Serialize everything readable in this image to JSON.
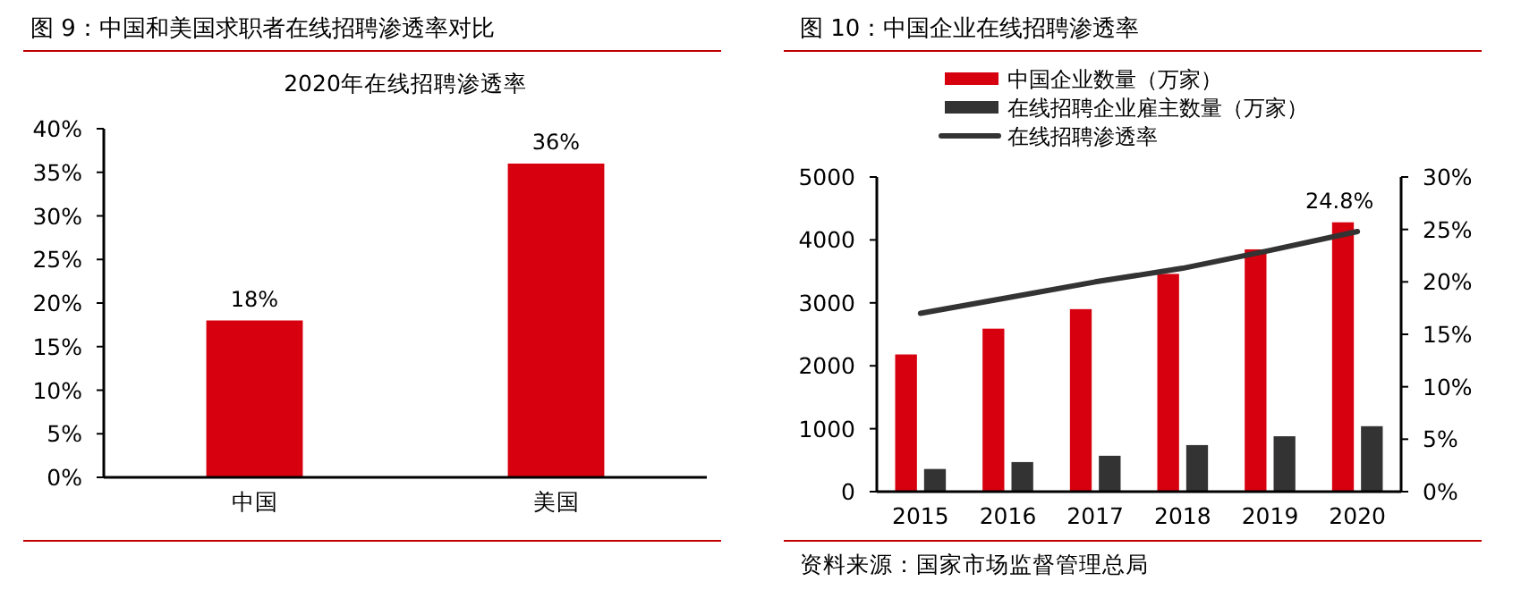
{
  "chart_data": [
    {
      "type": "bar",
      "title": "图 9：中国和美国求职者在线招聘渗透率对比",
      "subtitle": "2020年在线招聘渗透率",
      "categories": [
        "中国",
        "美国"
      ],
      "series": [
        {
          "color": "#d7000f",
          "values": [
            18,
            36
          ],
          "value_labels": [
            "18%",
            "36%"
          ]
        }
      ],
      "ylim": [
        0,
        40
      ],
      "yticks": [
        {
          "value": 0,
          "label": "0%"
        },
        {
          "value": 5,
          "label": "5%"
        },
        {
          "value": 10,
          "label": "10%"
        },
        {
          "value": 15,
          "label": "15%"
        },
        {
          "value": 20,
          "label": "20%"
        },
        {
          "value": 25,
          "label": "25%"
        },
        {
          "value": 30,
          "label": "30%"
        },
        {
          "value": 35,
          "label": "35%"
        },
        {
          "value": 40,
          "label": "40%"
        }
      ]
    },
    {
      "type": "bar",
      "title": "图 10：中国企业在线招聘渗透率",
      "categories": [
        "2015",
        "2016",
        "2017",
        "2018",
        "2019",
        "2020"
      ],
      "series": [
        {
          "name": "中国企业数量（万家）",
          "color": "#d7000f",
          "values": [
            2180,
            2590,
            2900,
            3460,
            3850,
            4280
          ]
        },
        {
          "name": "在线招聘企业雇主数量（万家）",
          "color": "#333333",
          "values": [
            360,
            470,
            570,
            740,
            880,
            1040
          ]
        },
        {
          "name": "在线招聘渗透率",
          "type": "line",
          "axis": "y2",
          "color": "#333333",
          "values": [
            17.0,
            18.5,
            20.0,
            21.3,
            23.0,
            24.8
          ],
          "value_labels": [
            null,
            null,
            null,
            null,
            null,
            "24.8%"
          ]
        }
      ],
      "ylim": [
        0,
        5000
      ],
      "yticks": [
        0,
        1000,
        2000,
        3000,
        4000,
        5000
      ],
      "y2lim": [
        0,
        30
      ],
      "y2ticks": [
        {
          "value": 0,
          "label": "0%"
        },
        {
          "value": 5,
          "label": "5%"
        },
        {
          "value": 10,
          "label": "10%"
        },
        {
          "value": 15,
          "label": "15%"
        },
        {
          "value": 20,
          "label": "20%"
        },
        {
          "value": 25,
          "label": "25%"
        },
        {
          "value": 30,
          "label": "30%"
        }
      ],
      "legend": "top",
      "annotations": [
        "资料来源：国家市场监督管理总局"
      ]
    }
  ]
}
